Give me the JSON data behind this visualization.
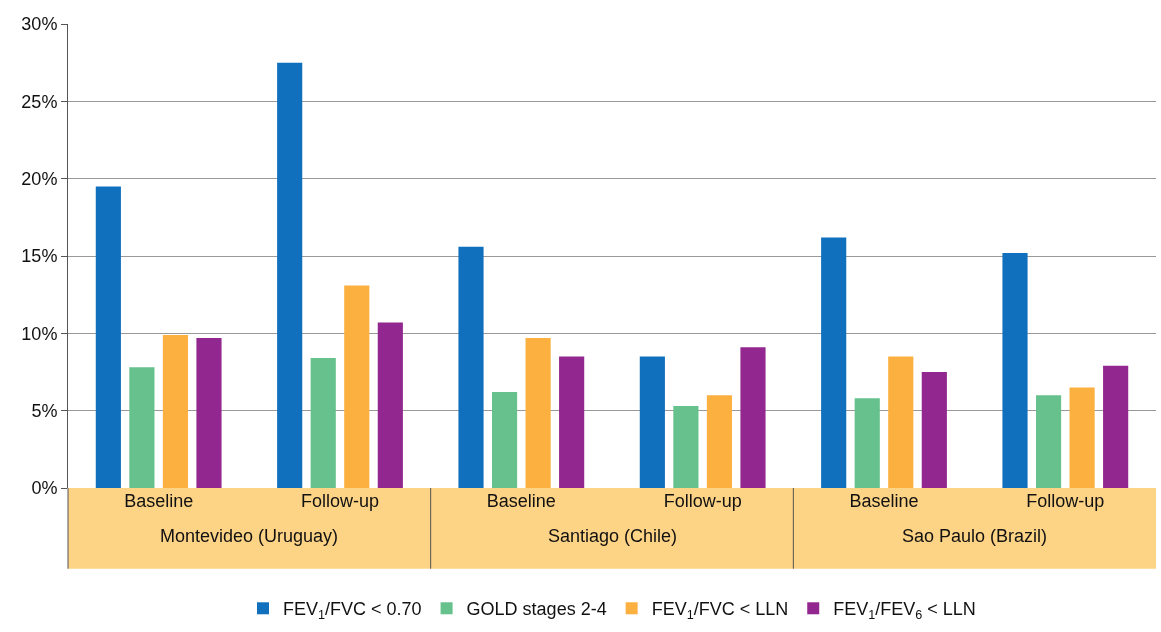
{
  "chart_data": {
    "type": "bar",
    "categories": [
      "Baseline",
      "Follow-up",
      "Baseline",
      "Follow-up",
      "Baseline",
      "Follow-up"
    ],
    "annotations": [
      "Montevideo (Uruguay)",
      "Santiago (Chile)",
      "Sao Paulo (Brazil)"
    ],
    "series": [
      {
        "name": "FEV$_{1}$/FVC < 0.70",
        "color": "#1170be",
        "values": [
          19.5,
          27.5,
          15.6,
          8.5,
          16.2,
          15.2
        ]
      },
      {
        "name": "GOLD stages 2-4",
        "color": "#66c18c",
        "values": [
          7.8,
          8.4,
          6.2,
          5.3,
          5.8,
          6.0
        ]
      },
      {
        "name": "FEV$_{1}$/FVC < LLN",
        "color": "#fbb040",
        "values": [
          9.9,
          13.1,
          9.7,
          6.0,
          8.5,
          6.5
        ]
      },
      {
        "name": "FEV$_{1}$/FEV$_{6}$ < LLN",
        "color": "#92278f",
        "values": [
          9.7,
          10.7,
          8.5,
          9.1,
          7.5,
          7.9
        ]
      }
    ],
    "ylim": [
      0,
      30
    ],
    "yticks": [
      {
        "value": 0,
        "label": "0%"
      },
      {
        "value": 5,
        "label": "5%"
      },
      {
        "value": 10,
        "label": "10%"
      },
      {
        "value": 15,
        "label": "15%"
      },
      {
        "value": 20,
        "label": "20%"
      },
      {
        "value": 25,
        "label": "25%"
      },
      {
        "value": 30,
        "label": "30%"
      }
    ],
    "grid": "y",
    "legend": "bottom"
  }
}
